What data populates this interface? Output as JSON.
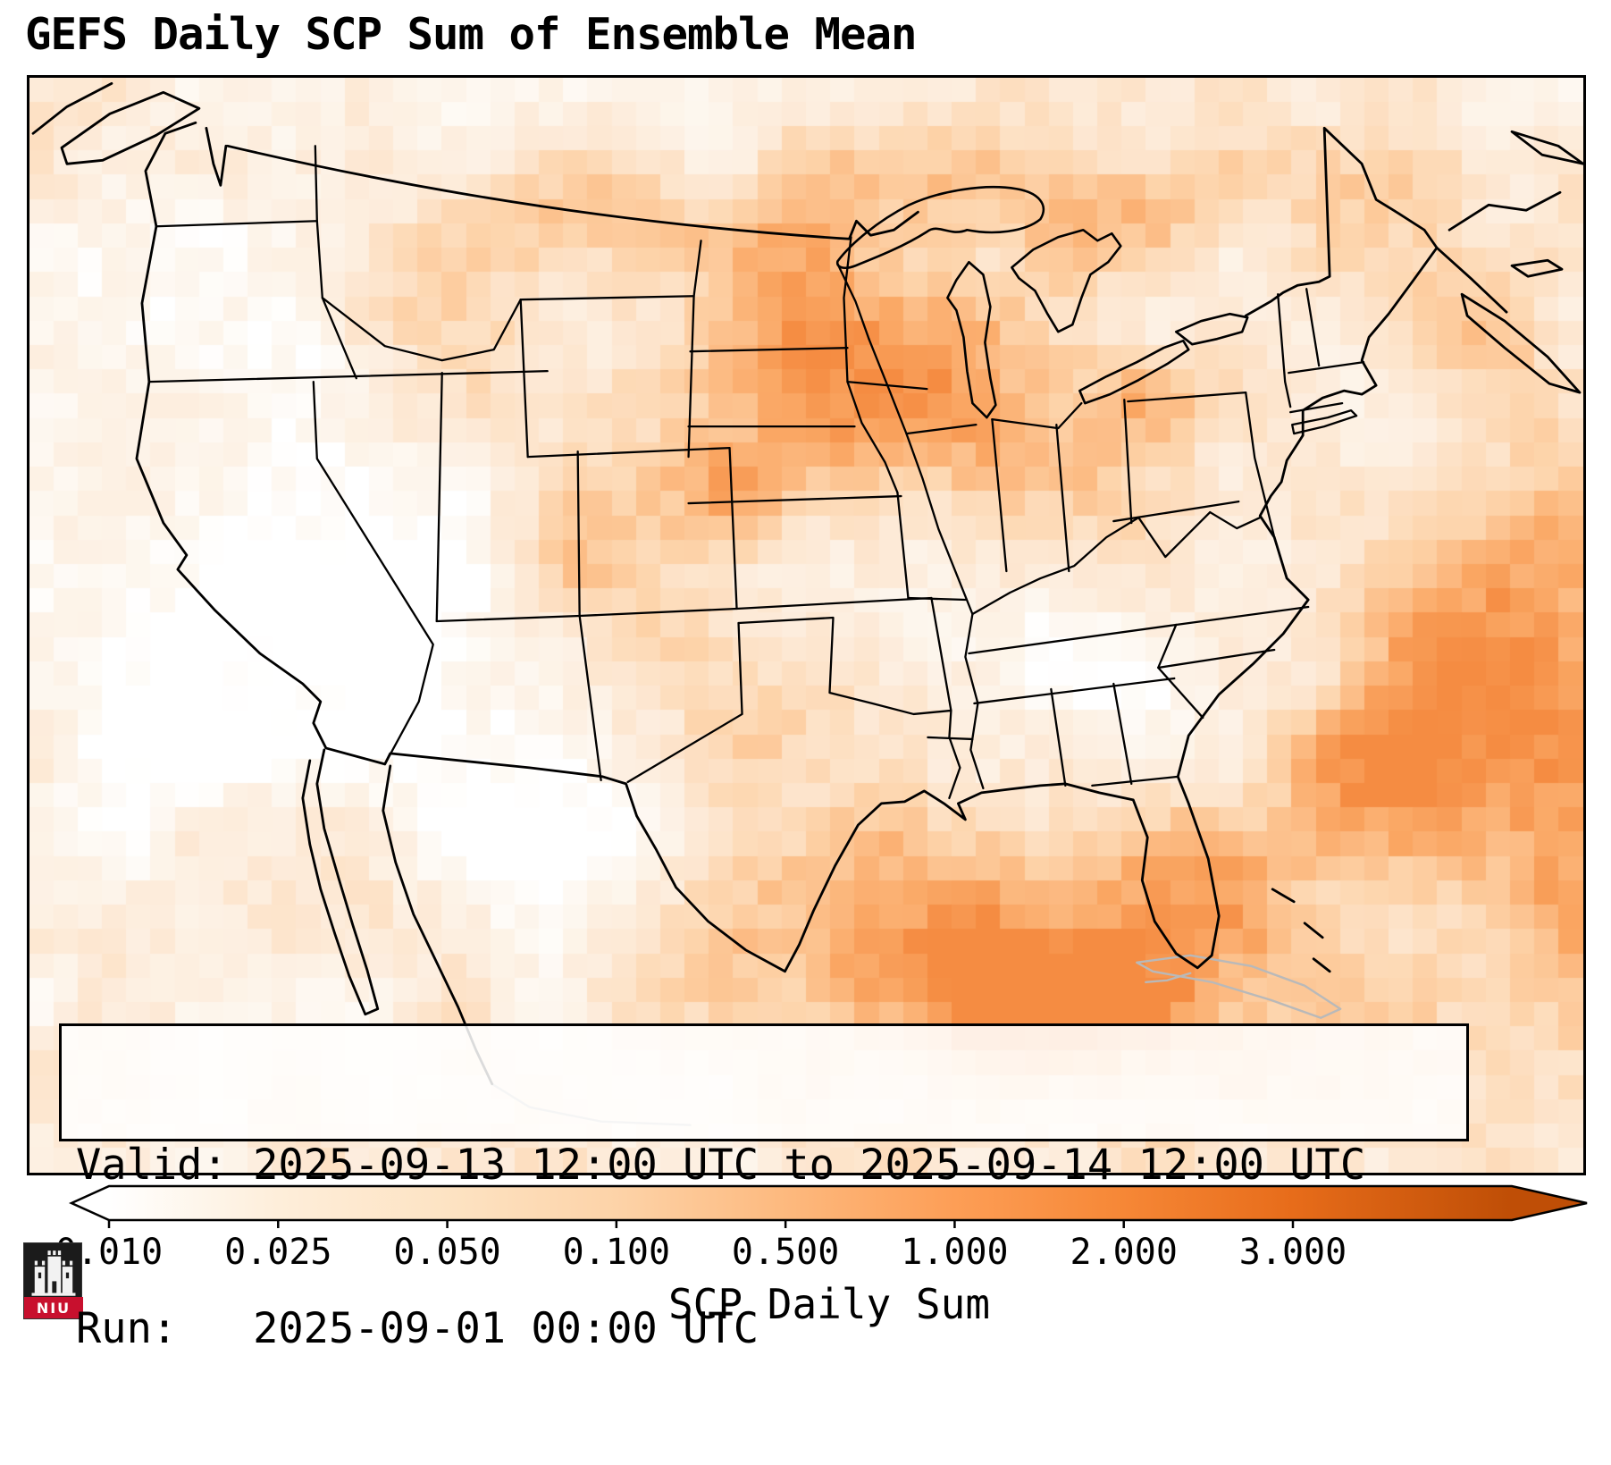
{
  "title": "GEFS Daily SCP Sum of Ensemble Mean",
  "info_box": {
    "valid_line": "Valid: 2025-09-13 12:00 UTC to 2025-09-14 12:00 UTC",
    "run_line": "Run:   2025-09-01 00:00 UTC"
  },
  "colorbar": {
    "label": "SCP Daily Sum",
    "ticks": [
      "0.010",
      "0.025",
      "0.050",
      "0.100",
      "0.500",
      "1.000",
      "2.000",
      "3.000"
    ],
    "boundary_colors": [
      "#ffffff",
      "#feeeda",
      "#fde3c3",
      "#fdd3a8",
      "#fdb97e",
      "#fd9e56",
      "#f68736",
      "#e76c1a",
      "#bf4e06"
    ],
    "extend": "both",
    "under_color": "#ffffff",
    "over_color": "#bf4e06"
  },
  "logo": {
    "text": "NIU",
    "red": "#c8102e"
  },
  "chart_data": {
    "type": "heatmap",
    "title": "GEFS Daily SCP Sum of Ensemble Mean",
    "variable": "SCP Daily Sum",
    "valid": "2025-09-13 12:00 UTC to 2025-09-14 12:00 UTC",
    "run": "2025-09-01 00:00 UTC",
    "colorbar_ticks": [
      0.01,
      0.025,
      0.05,
      0.1,
      0.5,
      1.0,
      2.0,
      3.0
    ],
    "colormap": "Oranges",
    "extent": "CONUS with surrounding ocean, southern Canada and northern Mexico",
    "high_regions": [
      "Gulf of Mexico",
      "western Atlantic off the Southeast coast",
      "Upper Midwest (MN/WI/IA)",
      "Northern Plains / southern Manitoba-Ontario"
    ],
    "low_regions": [
      "California and Great Basin",
      "west Texas / New Mexico",
      "interior Mid-South (MO/TN)"
    ]
  }
}
